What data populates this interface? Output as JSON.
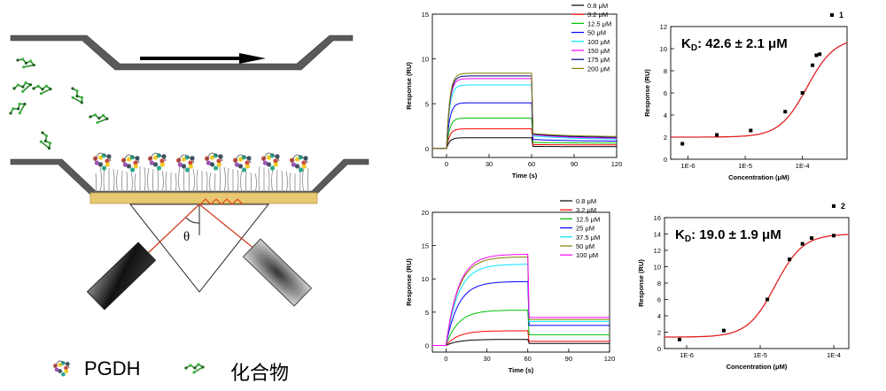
{
  "legend": {
    "protein_label": "PGDH",
    "compound_label": "化合物"
  },
  "schematic": {
    "angle_label": "θ"
  },
  "colors": {
    "fit_line": "#e02020",
    "point": "#000000",
    "gold_chip": "#e8c870",
    "channel": "#5a5a5a"
  },
  "chart_data": [
    {
      "type": "line",
      "panel": "sensorgram-1",
      "xlabel": "Time (s)",
      "ylabel": "Response (RU)",
      "xlim": [
        -10,
        120
      ],
      "ylim": [
        -1,
        15
      ],
      "xticks": [
        0,
        30,
        60,
        90,
        120
      ],
      "yticks": [
        0,
        5,
        10,
        15
      ],
      "legend_position": "top-right",
      "kinetics": {
        "assoc_end": 60
      },
      "series": [
        {
          "name": "0.8 μM",
          "color": "#000000",
          "plateau": 1.2,
          "tail": 0.2
        },
        {
          "name": "3.2 μM",
          "color": "#ff0000",
          "plateau": 2.2,
          "tail": 0.4
        },
        {
          "name": "12.5 μM",
          "color": "#00c000",
          "plateau": 3.4,
          "tail": 0.6
        },
        {
          "name": "50 μM",
          "color": "#0000ff",
          "plateau": 5.1,
          "tail": 0.8
        },
        {
          "name": "100 μM",
          "color": "#00e5ff",
          "plateau": 7.1,
          "tail": 1.0
        },
        {
          "name": "150 μM",
          "color": "#ff00ff",
          "plateau": 7.8,
          "tail": 1.1
        },
        {
          "name": "175 μM",
          "color": "#000080",
          "plateau": 8.1,
          "tail": 1.2
        },
        {
          "name": "200 μM",
          "color": "#808000",
          "plateau": 8.4,
          "tail": 1.3
        }
      ]
    },
    {
      "type": "line",
      "panel": "sensorgram-2",
      "xlabel": "Time (s)",
      "ylabel": "Response (RU)",
      "xlim": [
        -10,
        120
      ],
      "ylim": [
        -1,
        20
      ],
      "xticks": [
        0,
        30,
        60,
        90,
        120
      ],
      "yticks": [
        0,
        5,
        10,
        15,
        20
      ],
      "legend_position": "top-right",
      "kinetics": {
        "assoc_end": 60
      },
      "series": [
        {
          "name": "0.8 μM",
          "color": "#000000",
          "plateau": 0.9,
          "tail": 0.3
        },
        {
          "name": "3.2 μM",
          "color": "#ff0000",
          "plateau": 2.2,
          "tail": 0.6
        },
        {
          "name": "12.5 μM",
          "color": "#00c000",
          "plateau": 5.3,
          "tail": 1.6
        },
        {
          "name": "25 μM",
          "color": "#0000ff",
          "plateau": 9.6,
          "tail": 3.0
        },
        {
          "name": "37.5 μM",
          "color": "#00e5ff",
          "plateau": 12.2,
          "tail": 3.6
        },
        {
          "name": "50 μM",
          "color": "#808000",
          "plateau": 13.3,
          "tail": 3.9
        },
        {
          "name": "100 μM",
          "color": "#ff00ff",
          "plateau": 13.7,
          "tail": 4.2
        }
      ]
    },
    {
      "type": "scatter",
      "panel": "affinity-1",
      "xscale": "log",
      "xlabel": "Concentration (μM)",
      "ylabel": "Response (RU)",
      "xlim": [
        5e-07,
        0.0006
      ],
      "ylim": [
        0,
        12
      ],
      "xticks": [
        1e-06,
        1e-05,
        0.0001
      ],
      "xticklabels": [
        "1E-6",
        "1E-5",
        "1E-4"
      ],
      "yticks": [
        0,
        2,
        4,
        6,
        8,
        10,
        12
      ],
      "annotation": "K<sub>D</sub>: 42.6 ± 2.1 μM",
      "legend_label": "1",
      "points": [
        {
          "x": 8e-07,
          "y": 1.4
        },
        {
          "x": 3.2e-06,
          "y": 2.2
        },
        {
          "x": 1.25e-05,
          "y": 2.6
        },
        {
          "x": 5e-05,
          "y": 4.3
        },
        {
          "x": 0.0001,
          "y": 6.0
        },
        {
          "x": 0.00015,
          "y": 8.5
        },
        {
          "x": 0.000175,
          "y": 9.4
        },
        {
          "x": 0.0002,
          "y": 9.5
        }
      ],
      "fit": {
        "bottom": 2.0,
        "top": 11.0,
        "x50": 0.00012,
        "hill": 1.8
      }
    },
    {
      "type": "scatter",
      "panel": "affinity-2",
      "xscale": "log",
      "xlabel": "Concentration (μM)",
      "ylabel": "Response (RU)",
      "xlim": [
        5e-07,
        0.00016
      ],
      "ylim": [
        0,
        16
      ],
      "xticks": [
        1e-06,
        1e-05,
        0.0001
      ],
      "xticklabels": [
        "1E-6",
        "1E-5",
        "1E-4"
      ],
      "yticks": [
        0,
        2,
        4,
        6,
        8,
        10,
        12,
        14,
        16
      ],
      "annotation": "K<sub>D</sub>: 19.0 ± 1.9 μM",
      "legend_label": "2",
      "points": [
        {
          "x": 8e-07,
          "y": 1.1
        },
        {
          "x": 3.2e-06,
          "y": 2.2
        },
        {
          "x": 1.25e-05,
          "y": 6.0
        },
        {
          "x": 2.5e-05,
          "y": 10.9
        },
        {
          "x": 3.75e-05,
          "y": 12.8
        },
        {
          "x": 5e-05,
          "y": 13.5
        },
        {
          "x": 0.0001,
          "y": 13.8
        }
      ],
      "fit": {
        "bottom": 1.4,
        "top": 14.0,
        "x50": 1.6e-05,
        "hill": 2.3
      }
    }
  ]
}
